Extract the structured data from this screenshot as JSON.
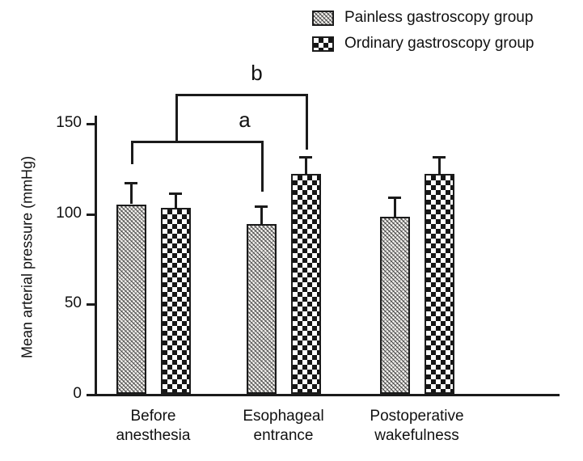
{
  "figure": {
    "background": "#ffffff",
    "ink_color": "#1b1b1b",
    "text_color": "#111111"
  },
  "chart_data": {
    "type": "bar",
    "title": "",
    "ylabel": "Mean arterial pressure (mmHg)",
    "xlabel": "",
    "ylim": [
      0,
      150
    ],
    "yticks": [
      0,
      50,
      100,
      150
    ],
    "grid": false,
    "legend_position": "top-right",
    "error_bar_style": "upper-cap",
    "categories": [
      "Before anesthesia",
      "Esophageal entrance",
      "Postoperative wakefulness"
    ],
    "series": [
      {
        "name": "Painless gastroscopy group",
        "pattern": "fine-crosshatch",
        "values": [
          105,
          94,
          98
        ],
        "errors": [
          12,
          10,
          11
        ]
      },
      {
        "name": "Ordinary gastroscopy group",
        "pattern": "checkerboard",
        "values": [
          103,
          122,
          122
        ],
        "errors": [
          8,
          9,
          9
        ]
      }
    ],
    "annotations": [
      {
        "label": "a",
        "from_group": 0,
        "from_series": 0,
        "to_group": 1,
        "to_series": 0,
        "line_mmHg": 140,
        "drop_from_mmHg": 127,
        "drop_to_mmHg": 112,
        "label_offset_x": 55
      },
      {
        "label": "b",
        "from_group": 0,
        "from_series": 1,
        "to_group": 1,
        "to_series": 1,
        "line_mmHg": 166,
        "drop_from_mmHg": 140,
        "drop_to_mmHg": 135,
        "label_offset_x": 15
      }
    ]
  }
}
